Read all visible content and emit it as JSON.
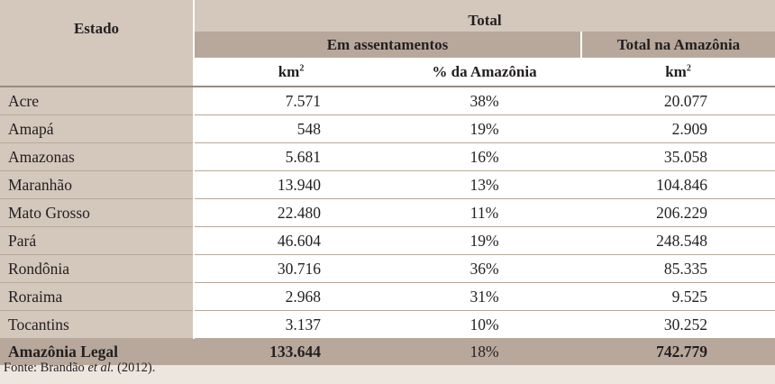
{
  "header": {
    "estado": "Estado",
    "total": "Total",
    "em_assentamentos": "Em assentamentos",
    "total_na_amazonia": "Total na Amazônia",
    "unit_km2": "km",
    "unit_sup": "2",
    "pct_amazonia": "% da Amazônia"
  },
  "rows": [
    {
      "estado": "Acre",
      "km2": "7.571",
      "pct": "38%",
      "total": "20.077"
    },
    {
      "estado": "Amapá",
      "km2": "548",
      "pct": "19%",
      "total": "2.909"
    },
    {
      "estado": "Amazonas",
      "km2": "5.681",
      "pct": "16%",
      "total": "35.058"
    },
    {
      "estado": "Maranhão",
      "km2": "13.940",
      "pct": "13%",
      "total": "104.846"
    },
    {
      "estado": "Mato Grosso",
      "km2": "22.480",
      "pct": "11%",
      "total": "206.229"
    },
    {
      "estado": "Pará",
      "km2": "46.604",
      "pct": "19%",
      "total": "248.548"
    },
    {
      "estado": "Rondônia",
      "km2": "30.716",
      "pct": "36%",
      "total": "85.335"
    },
    {
      "estado": "Roraima",
      "km2": "2.968",
      "pct": "31%",
      "total": "9.525"
    },
    {
      "estado": "Tocantins",
      "km2": "3.137",
      "pct": "10%",
      "total": "30.252"
    }
  ],
  "total_row": {
    "estado": "Amazônia Legal",
    "km2": "133.644",
    "pct": "18%",
    "total": "742.779"
  },
  "source": {
    "prefix": "Fonte: Brandão ",
    "etal": "et al.",
    "suffix": " (2012)."
  }
}
